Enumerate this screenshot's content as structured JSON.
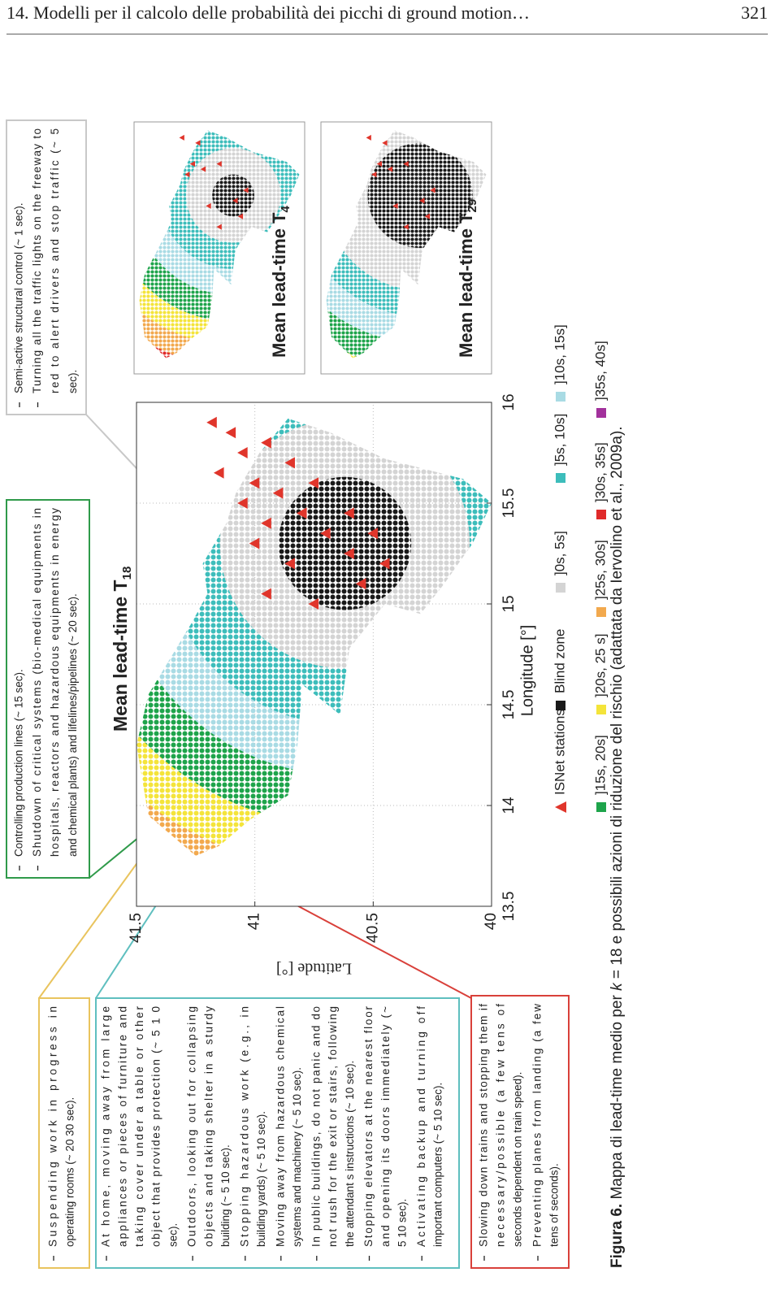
{
  "header": {
    "title": "14. Modelli per il calcolo delle probabilità dei picchi di ground motion…",
    "page_number": "321"
  },
  "figure": {
    "boxes": [
      {
        "color": "#e9c45e",
        "items": [
          [
            "Suspending work in progress in",
            "operating rooms (~ 20 30 sec)."
          ]
        ]
      },
      {
        "color": "#5fbfbf",
        "items": [
          [
            "At home, moving away from large",
            "appliances or pieces of furniture and",
            "taking cover under a table or other",
            "object that provides protection (~ 5 1 0",
            "sec)."
          ],
          [
            "Outdoors, looking out for collapsing",
            "objects and taking shelter in a sturdy",
            "building (~ 5 10 sec)."
          ],
          [
            "Stopping hazardous work (e.g., in",
            "building yards) (~ 5 10 sec)."
          ],
          [
            "Moving away from hazardous chemical",
            "systems and machinery (~ 5 10 sec)."
          ],
          [
            "In public buildings, do not panic and do",
            "not rush for the exit or stairs, following",
            "the attendant s instructions (~ 10 sec)."
          ],
          [
            "Stopping elevators at the nearest floor",
            "and opening its doors immediately (~",
            "5 10 sec)."
          ],
          [
            "Activating backup and turning off",
            "important computers (~ 5 10 sec)."
          ]
        ]
      },
      {
        "color": "#d9403a",
        "items": [
          [
            "Slowing down trains and stopping them if",
            "necessary/possible (a few tens of",
            "seconds dependent on train speed)."
          ],
          [
            "Preventing planes from landing (a few",
            "tens of seconds)."
          ]
        ]
      },
      {
        "color": "#2f9a4a",
        "items": [
          [
            "Controlling production lines (~ 15 sec)."
          ],
          [
            "Shutdown of critical systems (bio-medical equipments in",
            "hospitals, reactors and hazardous equipments in energy",
            "and chemical plants) and lifelines/pipelines (~ 20 sec)."
          ]
        ]
      },
      {
        "color": "#c8c8c8",
        "items": [
          [
            "Semi-active structural control (~ 1 sec)."
          ],
          [
            "Turning all the traffic lights on the freeway to",
            "red to alert drivers and stop traffic (~ 5",
            "sec)."
          ]
        ]
      }
    ],
    "main_map": {
      "title": "Mean lead-time T",
      "title_subscript": "18",
      "xlabel": "Longitude [°]",
      "ylabel": "Latitude [°]",
      "xlim": [
        13.5,
        16
      ],
      "ylim": [
        40,
        41.5
      ],
      "xticks": [
        13.5,
        14,
        14.5,
        15,
        15.5,
        16
      ],
      "yticks": [
        40,
        40.5,
        41,
        41.5
      ],
      "grid": true
    },
    "inset_maps": [
      {
        "title": "Mean lead-time T",
        "title_subscript": "4"
      },
      {
        "title": "Mean lead-time T",
        "title_subscript": "29"
      }
    ],
    "legend": [
      {
        "name": "ISNet stations",
        "color": "#e0352b",
        "marker": "triangle"
      },
      {
        "name": "Blind zone",
        "color": "#1a1a1a",
        "marker": "square"
      },
      {
        "name": "]0s, 5s]",
        "color": "#d4d4d4",
        "marker": "square"
      },
      {
        "name": "]5s, 10s]",
        "color": "#3dbdbb",
        "marker": "square"
      },
      {
        "name": "]10s, 15s]",
        "color": "#a9dbe4",
        "marker": "square"
      },
      {
        "name": "]15s, 20s]",
        "color": "#1ea44b",
        "marker": "square"
      },
      {
        "name": "]20s, 25 s]",
        "color": "#f4e43a",
        "marker": "square"
      },
      {
        "name": "]25s, 30s]",
        "color": "#f2a94e",
        "marker": "square"
      },
      {
        "name": "]30s, 35s]",
        "color": "#e02a2a",
        "marker": "square"
      },
      {
        "name": "]35s, 40s]",
        "color": "#a2319c",
        "marker": "square"
      }
    ],
    "caption": {
      "label": "Figura 6.",
      "text_before": " Mappa di lead-time medio per ",
      "variable": "k",
      "text_after": " = 18 e possibili azioni di riduzione del rischio (adattata da Iervolino et al., 2009a)."
    }
  }
}
